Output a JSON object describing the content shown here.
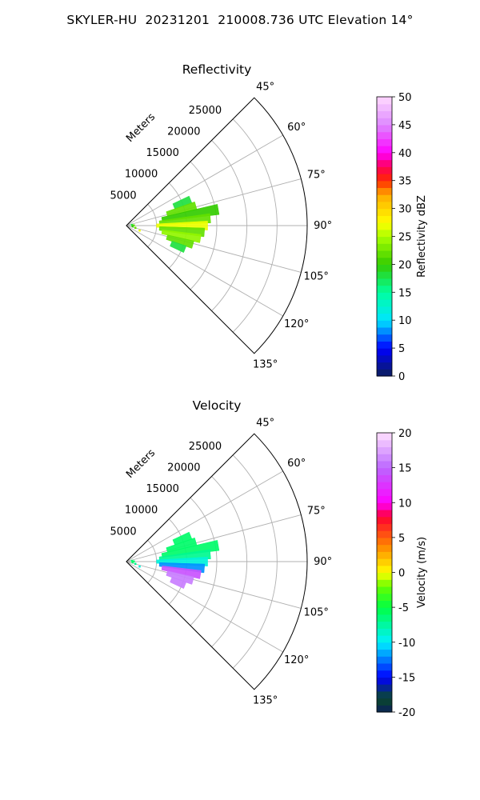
{
  "title": "SKYLER-HU  20231201  210008.736 UTC Elevation 14°",
  "chart_data": [
    {
      "type": "heatmap",
      "subtype": "polar-sector",
      "title": "Reflectivity",
      "radial_label": "Meters",
      "radial_ticks": [
        5000,
        10000,
        15000,
        20000,
        25000
      ],
      "radial_range": [
        0,
        30000
      ],
      "angle_ticks": [
        45,
        60,
        75,
        90,
        105,
        120,
        135
      ],
      "angle_tick_labels": [
        "45°",
        "60°",
        "75°",
        "90°",
        "105°",
        "120°",
        "135°"
      ],
      "angle_range": [
        45,
        135
      ],
      "grid": true,
      "colorbar": {
        "label": "Reflectivity dBZ",
        "min": 0,
        "max": 50,
        "ticks": [
          0,
          5,
          10,
          15,
          20,
          25,
          30,
          35,
          40,
          45,
          50
        ]
      },
      "field_approx": [
        {
          "az": 68,
          "r_min": 8500,
          "r_max": 11500,
          "value": 18
        },
        {
          "az": 74,
          "r_min": 7000,
          "r_max": 12000,
          "value": 22
        },
        {
          "az": 80,
          "r_min": 6000,
          "r_max": 15500,
          "value": 20
        },
        {
          "az": 85,
          "r_min": 5500,
          "r_max": 14000,
          "value": 22
        },
        {
          "az": 90,
          "r_min": 5000,
          "r_max": 13500,
          "value": 27
        },
        {
          "az": 95,
          "r_min": 5500,
          "r_max": 13000,
          "value": 22
        },
        {
          "az": 100,
          "r_min": 6000,
          "r_max": 12500,
          "value": 24
        },
        {
          "az": 106,
          "r_min": 7000,
          "r_max": 11500,
          "value": 22
        },
        {
          "az": 112,
          "r_min": 8000,
          "r_max": 10500,
          "value": 18
        }
      ]
    },
    {
      "type": "heatmap",
      "subtype": "polar-sector",
      "title": "Velocity",
      "radial_label": "Meters",
      "radial_ticks": [
        5000,
        10000,
        15000,
        20000,
        25000
      ],
      "radial_range": [
        0,
        30000
      ],
      "angle_ticks": [
        45,
        60,
        75,
        90,
        105,
        120,
        135
      ],
      "angle_tick_labels": [
        "45°",
        "60°",
        "75°",
        "90°",
        "105°",
        "120°",
        "135°"
      ],
      "angle_range": [
        45,
        135
      ],
      "grid": true,
      "colorbar": {
        "label": "Velocity (m/s)",
        "min": -20,
        "max": 20,
        "ticks": [
          -20,
          -15,
          -10,
          -5,
          0,
          5,
          10,
          15,
          20
        ]
      },
      "field_approx": [
        {
          "az": 68,
          "r_min": 8500,
          "r_max": 11500,
          "value": -6
        },
        {
          "az": 74,
          "r_min": 7000,
          "r_max": 12000,
          "value": -6
        },
        {
          "az": 80,
          "r_min": 6000,
          "r_max": 15500,
          "value": -6
        },
        {
          "az": 85,
          "r_min": 5500,
          "r_max": 14000,
          "value": -7
        },
        {
          "az": 90,
          "r_min": 5000,
          "r_max": 13500,
          "value": -9
        },
        {
          "az": 95,
          "r_min": 5500,
          "r_max": 13000,
          "value": -12
        },
        {
          "az": 100,
          "r_min": 6000,
          "r_max": 12500,
          "value": 14
        },
        {
          "az": 106,
          "r_min": 7000,
          "r_max": 11500,
          "value": 16
        },
        {
          "az": 112,
          "r_min": 8000,
          "r_max": 10500,
          "value": 16
        }
      ]
    }
  ]
}
